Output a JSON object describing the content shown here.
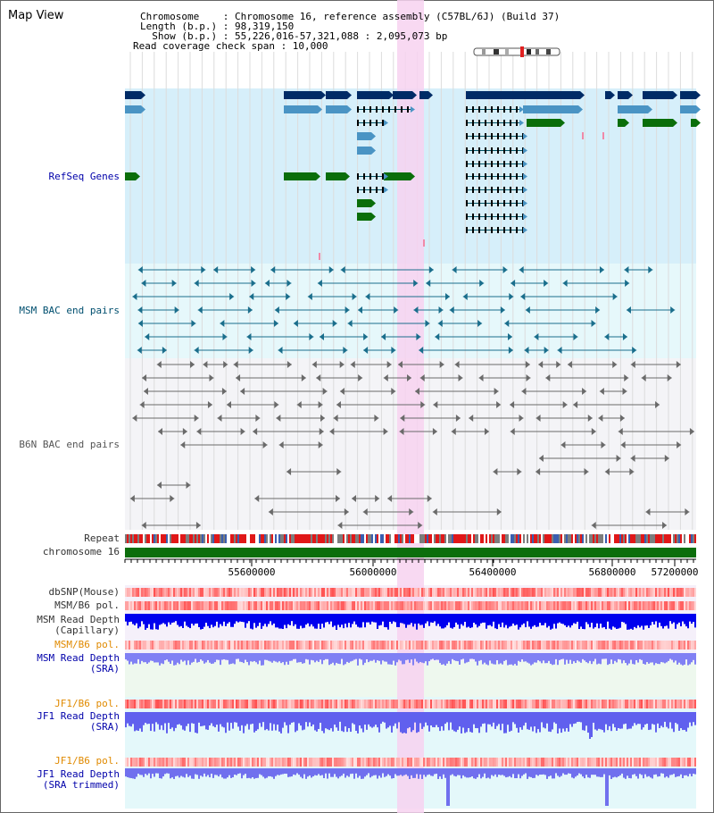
{
  "title": "Map View",
  "info": {
    "chromosome_line": "Chromosome    : Chromosome 16, reference assembly (C57BL/6J) (Build 37)",
    "length_line": "Length (b.p.) : 98,319,150",
    "show_line": "  Show (b.p.) : 55,226,016-57,321,088 : 2,095,073 bp",
    "coverage_line": "Read coverage check span : 10,000"
  },
  "tracks": {
    "refseq": "RefSeq Genes",
    "msm_bac": "MSM BAC end pairs",
    "b6n_bac": "B6N BAC end pairs",
    "repeat": "Repeat",
    "chromosome": "chromosome 16",
    "dbsnp": "dbSNP(Mouse)",
    "msm_b6_pol_1": "MSM/B6 pol.",
    "msm_depth_cap_1": "MSM Read Depth",
    "msm_depth_cap_2": "(Capillary)",
    "msm_b6_pol_2": "MSM/B6 pol.",
    "msm_depth_sra_1": "MSM Read Depth",
    "msm_depth_sra_2": "(SRA)",
    "jf1_b6_pol_1": "JF1/B6 pol.",
    "jf1_depth_sra_1": "JF1 Read Depth",
    "jf1_depth_sra_2": "(SRA)",
    "jf1_b6_pol_2": "JF1/B6 pol.",
    "jf1_depth_trim_1": "JF1 Read Depth",
    "jf1_depth_trim_2": "(SRA trimmed)"
  },
  "axis": {
    "ticks": [
      "55600000",
      "56000000",
      "56400000",
      "56800000",
      "57200000"
    ]
  },
  "colors": {
    "refseq_bg": "#d6effa",
    "msm_bac_bg": "#e6f8fb",
    "b6n_bac_bg": "#f4f4f7",
    "highlight": "#f7d2f0",
    "gene_dark": "#002b66",
    "gene_mid": "#4a94c4",
    "gene_green": "#0a6e0a",
    "chromosome": "#0c6e0c",
    "depth_blue": "#0000ee",
    "depth_light": "#8080f4"
  }
}
